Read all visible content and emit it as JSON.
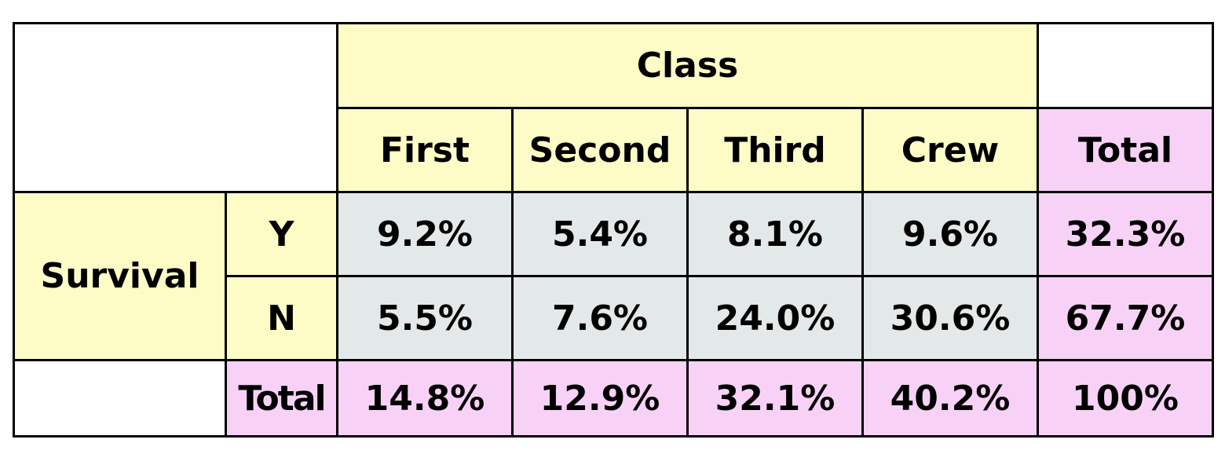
{
  "chart_data": {
    "type": "table",
    "column_header": "Class",
    "row_header": "Survival",
    "columns": [
      "First",
      "Second",
      "Third",
      "Crew"
    ],
    "total_label": "Total",
    "rows": [
      {
        "label": "Y",
        "values": [
          "9.2%",
          "5.4%",
          "8.1%",
          "9.6%"
        ],
        "total": "32.3%"
      },
      {
        "label": "N",
        "values": [
          "5.5%",
          "7.6%",
          "24.0%",
          "30.6%"
        ],
        "total": "67.7%"
      }
    ],
    "column_totals": [
      "14.8%",
      "12.9%",
      "32.1%",
      "40.2%"
    ],
    "grand_total": "100%"
  },
  "colors": {
    "header_yellow": "#fdfcc7",
    "total_pink": "#f8d2f6",
    "cell_gray": "#e3e8e8"
  }
}
